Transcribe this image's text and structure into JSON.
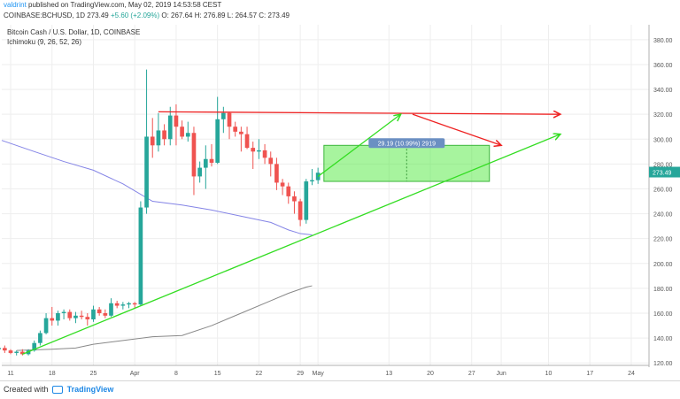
{
  "header": {
    "author": "valdrint",
    "published": "published on TradingView.com, May 02, 2019 14:53:58 CEST",
    "symbol": "COINBASE:BCHUSD, 1D",
    "last": "273.49",
    "change": "+5.60 (+2.09%)",
    "open": "O: 267.64",
    "high": "H: 276.89",
    "low": "L: 264.57",
    "close": "C: 273.49"
  },
  "footer": {
    "created": "Created with",
    "brand": "TradingView"
  },
  "colors": {
    "up": "#26a69a",
    "down": "#ef5350",
    "trend": "#33dd22",
    "resistance": "#ee2222",
    "price_tag": "#26a69a",
    "ma_blue": "#8484e6",
    "ma_gray": "#888888"
  },
  "chart_data": {
    "type": "candlestick",
    "title": "Bitcoin Cash / U.S. Dollar, 1D, COINBASE",
    "indicator_label": "Ichimoku (9, 26, 52, 26)",
    "ylim": [
      118,
      392
    ],
    "y_ticks": [
      "120.00",
      "140.00",
      "160.00",
      "180.00",
      "200.00",
      "220.00",
      "240.00",
      "260.00",
      "280.00",
      "300.00",
      "320.00",
      "340.00",
      "360.00",
      "380.00"
    ],
    "x_ticks": [
      {
        "label": "11",
        "day": 11
      },
      {
        "label": "18",
        "day": 18
      },
      {
        "label": "25",
        "day": 25
      },
      {
        "label": "Apr",
        "day": 32
      },
      {
        "label": "8",
        "day": 39
      },
      {
        "label": "15",
        "day": 46
      },
      {
        "label": "22",
        "day": 53
      },
      {
        "label": "29",
        "day": 60
      },
      {
        "label": "May",
        "day": 63
      },
      {
        "label": "13",
        "day": 75
      },
      {
        "label": "20",
        "day": 82
      },
      {
        "label": "27",
        "day": 89
      },
      {
        "label": "Jun",
        "day": 94
      },
      {
        "label": "10",
        "day": 102
      },
      {
        "label": "17",
        "day": 109
      },
      {
        "label": "24",
        "day": 116
      }
    ],
    "xlim_day": [
      9.5,
      119
    ],
    "candles": [
      [
        9,
        131,
        134,
        128,
        132
      ],
      [
        10,
        132,
        134,
        128,
        130
      ],
      [
        11,
        130,
        131,
        127,
        128
      ],
      [
        12,
        128,
        130,
        126,
        129
      ],
      [
        13,
        129,
        131,
        126,
        127
      ],
      [
        14,
        127,
        131,
        126,
        130
      ],
      [
        15,
        130,
        138,
        129,
        136
      ],
      [
        16,
        136,
        146,
        134,
        144
      ],
      [
        17,
        144,
        160,
        143,
        156
      ],
      [
        18,
        156,
        165,
        150,
        154
      ],
      [
        19,
        154,
        162,
        150,
        160
      ],
      [
        20,
        160,
        163,
        155,
        161
      ],
      [
        21,
        161,
        163,
        154,
        156
      ],
      [
        22,
        156,
        161,
        152,
        158
      ],
      [
        23,
        158,
        162,
        155,
        157
      ],
      [
        24,
        157,
        160,
        150,
        155
      ],
      [
        25,
        155,
        166,
        153,
        163
      ],
      [
        26,
        163,
        165,
        158,
        160
      ],
      [
        27,
        160,
        163,
        156,
        158
      ],
      [
        28,
        158,
        172,
        157,
        168
      ],
      [
        29,
        168,
        170,
        164,
        166
      ],
      [
        30,
        166,
        169,
        163,
        167
      ],
      [
        31,
        167,
        169,
        164,
        168
      ],
      [
        32,
        168,
        169,
        164,
        167
      ],
      [
        33,
        167,
        250,
        166,
        245
      ],
      [
        34,
        245,
        356,
        240,
        302
      ],
      [
        35,
        302,
        317,
        285,
        295
      ],
      [
        36,
        295,
        321,
        290,
        307
      ],
      [
        37,
        307,
        312,
        295,
        300
      ],
      [
        38,
        300,
        326,
        295,
        319
      ],
      [
        39,
        319,
        328,
        295,
        310
      ],
      [
        40,
        310,
        315,
        300,
        302
      ],
      [
        41,
        302,
        314,
        298,
        305
      ],
      [
        42,
        305,
        310,
        255,
        270
      ],
      [
        43,
        270,
        282,
        265,
        277
      ],
      [
        44,
        277,
        295,
        260,
        284
      ],
      [
        45,
        284,
        296,
        278,
        281
      ],
      [
        46,
        281,
        334,
        280,
        316
      ],
      [
        47,
        316,
        326,
        305,
        321
      ],
      [
        48,
        321,
        322,
        300,
        310
      ],
      [
        49,
        310,
        314,
        302,
        306
      ],
      [
        50,
        306,
        310,
        290,
        304
      ],
      [
        51,
        304,
        310,
        292,
        293
      ],
      [
        52,
        293,
        298,
        276,
        290
      ],
      [
        53,
        290,
        300,
        284,
        291
      ],
      [
        54,
        291,
        296,
        280,
        285
      ],
      [
        55,
        285,
        290,
        270,
        280
      ],
      [
        56,
        280,
        285,
        259,
        265
      ],
      [
        57,
        265,
        268,
        255,
        262
      ],
      [
        58,
        262,
        265,
        248,
        254
      ],
      [
        59,
        254,
        258,
        240,
        250
      ],
      [
        60,
        250,
        252,
        230,
        235
      ],
      [
        61,
        235,
        268,
        232,
        266
      ],
      [
        62,
        266,
        276,
        263,
        267
      ],
      [
        63,
        267,
        277,
        264,
        273
      ]
    ],
    "ma_blue": [
      [
        9.5,
        299
      ],
      [
        15,
        290
      ],
      [
        20,
        282
      ],
      [
        25,
        275
      ],
      [
        30,
        264
      ],
      [
        35,
        250
      ],
      [
        40,
        247
      ],
      [
        45,
        243
      ],
      [
        50,
        238
      ],
      [
        55,
        233
      ],
      [
        58,
        227
      ],
      [
        60,
        224
      ],
      [
        62,
        223
      ]
    ],
    "ma_gray": [
      [
        12,
        130
      ],
      [
        18,
        131
      ],
      [
        22,
        132
      ],
      [
        25,
        135
      ],
      [
        30,
        138
      ],
      [
        35,
        141
      ],
      [
        40,
        142
      ],
      [
        45,
        150
      ],
      [
        50,
        160
      ],
      [
        55,
        170
      ],
      [
        58,
        176
      ],
      [
        61,
        181
      ],
      [
        62,
        182
      ]
    ],
    "trend_line": {
      "from": [
        13,
        127
      ],
      "to": [
        104,
        304
      ]
    },
    "resistance_line": {
      "from": [
        36,
        322
      ],
      "to": [
        104,
        320
      ]
    },
    "arrow_up": {
      "from": [
        63,
        270
      ],
      "to": [
        77,
        320
      ]
    },
    "arrow_down": {
      "from": [
        79,
        320
      ],
      "to": [
        94,
        295
      ]
    },
    "target_box": {
      "x0": 64,
      "x1": 92,
      "y0": 266,
      "y1": 295
    },
    "box_label": "29.19 (10.99%) 2919",
    "last_price": 273.49,
    "last_price_label": "273.49"
  }
}
